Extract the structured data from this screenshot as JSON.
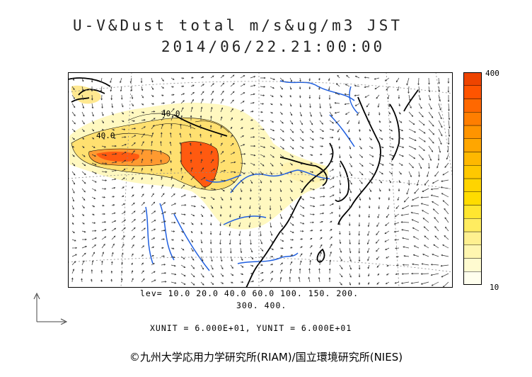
{
  "title": {
    "line1": "U-V&Dust total m/s&ug/m3 JST",
    "line2": "2014/06/22.21:00:00"
  },
  "map": {
    "contour_labels": [
      "40.0",
      "40.0"
    ],
    "colors": {
      "land_outline": "#000000",
      "rivers": "#1f5fe0",
      "grid": "#888888",
      "vectors": "#333333"
    }
  },
  "colorbar": {
    "max_label": "400",
    "min_label": "10",
    "colors": [
      "#ffffee",
      "#fffbd0",
      "#fff6b0",
      "#fff090",
      "#ffec60",
      "#ffe630",
      "#ffdc00",
      "#ffd400",
      "#ffc800",
      "#ffb800",
      "#ffa600",
      "#ff9400",
      "#ff7e00",
      "#ff6800",
      "#ff5400",
      "#ee4400"
    ]
  },
  "info": {
    "levels_line1": "lev= 10.0 20.0 40.0 60.0 100. 150. 200.",
    "levels_line2": "300. 400.",
    "units": "XUNIT = 6.000E+01, YUNIT = 6.000E+01"
  },
  "copyright": "©九州大学応用力学研究所(RIAM)/国立環境研究所(NIES)"
}
